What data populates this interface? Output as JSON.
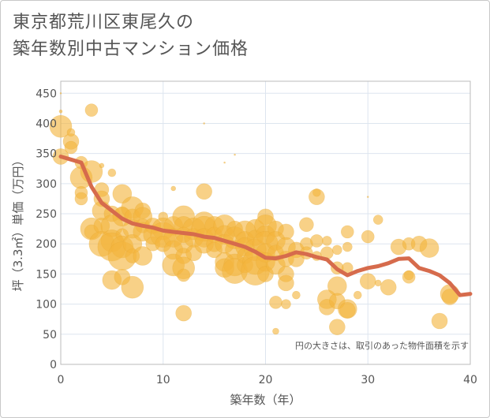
{
  "title_lines": [
    "東京都荒川区東尾久の",
    "築年数別中古マンション価格"
  ],
  "note": "円の大きさは、取引のあった物件面積を示す",
  "colors": {
    "bubble": "#f3b53e",
    "line": "#d66b4c",
    "grid": "#dde5ef",
    "plot_border": "#bbbbbb"
  },
  "chart_data": {
    "type": "scatter",
    "title": "東京都荒川区東尾久の 築年数別中古マンション価格",
    "xlabel": "築年数（年）",
    "ylabel": "坪（3.3㎡）単価（万円）",
    "xlim": [
      0,
      40
    ],
    "ylim": [
      0,
      470
    ],
    "x_ticks": [
      0,
      10,
      20,
      30,
      40
    ],
    "y_ticks": [
      0,
      50,
      100,
      150,
      200,
      250,
      300,
      350,
      400,
      450
    ],
    "grid": true,
    "series": [
      {
        "type": "bubble",
        "points": [
          [
            0,
            395,
            14
          ],
          [
            0,
            345,
            10
          ],
          [
            0,
            420,
            2
          ],
          [
            0,
            450,
            1
          ],
          [
            1,
            370,
            10
          ],
          [
            1,
            360,
            8
          ],
          [
            1,
            385,
            5
          ],
          [
            2,
            335,
            8
          ],
          [
            2,
            310,
            14
          ],
          [
            2,
            285,
            8
          ],
          [
            2,
            275,
            8
          ],
          [
            3,
            422,
            8
          ],
          [
            3,
            320,
            14
          ],
          [
            3,
            225,
            14
          ],
          [
            3,
            220,
            9
          ],
          [
            4,
            330,
            3
          ],
          [
            4,
            290,
            9
          ],
          [
            4,
            275,
            10
          ],
          [
            4,
            255,
            12
          ],
          [
            4,
            230,
            10
          ],
          [
            4,
            200,
            16
          ],
          [
            5,
            318,
            5
          ],
          [
            5,
            250,
            10
          ],
          [
            5,
            230,
            14
          ],
          [
            5,
            205,
            14
          ],
          [
            5,
            195,
            18
          ],
          [
            5,
            140,
            12
          ],
          [
            6,
            283,
            12
          ],
          [
            6,
            250,
            9
          ],
          [
            6,
            245,
            12
          ],
          [
            6,
            215,
            8
          ],
          [
            6,
            195,
            14
          ],
          [
            6,
            180,
            18
          ],
          [
            6,
            145,
            10
          ],
          [
            7,
            260,
            14
          ],
          [
            7,
            245,
            10
          ],
          [
            7,
            225,
            12
          ],
          [
            7,
            200,
            12
          ],
          [
            7,
            180,
            9
          ],
          [
            7,
            128,
            14
          ],
          [
            8,
            255,
            10
          ],
          [
            8,
            245,
            12
          ],
          [
            8,
            230,
            9
          ],
          [
            8,
            220,
            12
          ],
          [
            8,
            180,
            12
          ],
          [
            9,
            230,
            10
          ],
          [
            9,
            215,
            12
          ],
          [
            9,
            200,
            9
          ],
          [
            10,
            245,
            6
          ],
          [
            10,
            225,
            14
          ],
          [
            10,
            215,
            16
          ],
          [
            10,
            200,
            10
          ],
          [
            11,
            292,
            3
          ],
          [
            11,
            230,
            12
          ],
          [
            11,
            210,
            12
          ],
          [
            11,
            190,
            12
          ],
          [
            11,
            165,
            14
          ],
          [
            12,
            245,
            14
          ],
          [
            12,
            230,
            12
          ],
          [
            12,
            215,
            10
          ],
          [
            12,
            200,
            12
          ],
          [
            12,
            180,
            10
          ],
          [
            12,
            160,
            14
          ],
          [
            12,
            148,
            8
          ],
          [
            12,
            85,
            10
          ],
          [
            13,
            225,
            14
          ],
          [
            13,
            210,
            12
          ],
          [
            13,
            185,
            10
          ],
          [
            14,
            400,
            1
          ],
          [
            14,
            287,
            10
          ],
          [
            14,
            235,
            14
          ],
          [
            14,
            225,
            16
          ],
          [
            14,
            210,
            12
          ],
          [
            14,
            200,
            12
          ],
          [
            15,
            230,
            12
          ],
          [
            15,
            215,
            10
          ],
          [
            15,
            200,
            10
          ],
          [
            15,
            190,
            10
          ],
          [
            16,
            335,
            1
          ],
          [
            16,
            230,
            14
          ],
          [
            16,
            215,
            12
          ],
          [
            16,
            200,
            12
          ],
          [
            16,
            170,
            12
          ],
          [
            16,
            160,
            12
          ],
          [
            17,
            348,
            1
          ],
          [
            17,
            225,
            10
          ],
          [
            17,
            210,
            14
          ],
          [
            17,
            190,
            12
          ],
          [
            17,
            165,
            14
          ],
          [
            17,
            155,
            16
          ],
          [
            18,
            220,
            14
          ],
          [
            18,
            205,
            12
          ],
          [
            18,
            195,
            12
          ],
          [
            18,
            180,
            10
          ],
          [
            18,
            165,
            10
          ],
          [
            19,
            225,
            12
          ],
          [
            19,
            210,
            10
          ],
          [
            19,
            190,
            14
          ],
          [
            19,
            170,
            16
          ],
          [
            19,
            155,
            18
          ],
          [
            20,
            245,
            10
          ],
          [
            20,
            230,
            14
          ],
          [
            20,
            215,
            12
          ],
          [
            20,
            200,
            16
          ],
          [
            20,
            185,
            12
          ],
          [
            20,
            170,
            12
          ],
          [
            20,
            150,
            10
          ],
          [
            21,
            225,
            10
          ],
          [
            21,
            205,
            12
          ],
          [
            21,
            185,
            10
          ],
          [
            21,
            165,
            12
          ],
          [
            21,
            103,
            8
          ],
          [
            21,
            55,
            4
          ],
          [
            22,
            220,
            10
          ],
          [
            22,
            195,
            12
          ],
          [
            22,
            175,
            10
          ],
          [
            22,
            150,
            10
          ],
          [
            22,
            135,
            10
          ],
          [
            22,
            100,
            6
          ],
          [
            23,
            190,
            10
          ],
          [
            23,
            175,
            10
          ],
          [
            23,
            115,
            5
          ],
          [
            24,
            232,
            9
          ],
          [
            24,
            200,
            8
          ],
          [
            24,
            185,
            8
          ],
          [
            25,
            285,
            5
          ],
          [
            25,
            278,
            10
          ],
          [
            25,
            205,
            8
          ],
          [
            25,
            180,
            6
          ],
          [
            26,
            205,
            6
          ],
          [
            26,
            185,
            8
          ],
          [
            26,
            108,
            12
          ],
          [
            26,
            95,
            10
          ],
          [
            27,
            160,
            8
          ],
          [
            27,
            130,
            12
          ],
          [
            27,
            105,
            10
          ],
          [
            27,
            62,
            10
          ],
          [
            27,
            190,
            6
          ],
          [
            28,
            220,
            8
          ],
          [
            28,
            195,
            6
          ],
          [
            28,
            160,
            7
          ],
          [
            28,
            92,
            12
          ],
          [
            28,
            90,
            10
          ],
          [
            29,
            115,
            5
          ],
          [
            30,
            278,
            1
          ],
          [
            30,
            212,
            8
          ],
          [
            30,
            138,
            10
          ],
          [
            31,
            240,
            6
          ],
          [
            31,
            135,
            4
          ],
          [
            32,
            128,
            10
          ],
          [
            33,
            195,
            10
          ],
          [
            34,
            200,
            8
          ],
          [
            34,
            148,
            6
          ],
          [
            34,
            145,
            8
          ],
          [
            35,
            200,
            10
          ],
          [
            36,
            193,
            12
          ],
          [
            37,
            72,
            10
          ],
          [
            38,
            117,
            12
          ],
          [
            38,
            112,
            10
          ]
        ]
      },
      {
        "type": "line",
        "x": [
          0,
          1,
          2,
          3,
          4,
          5,
          6,
          7,
          8,
          9,
          10,
          11,
          12,
          13,
          14,
          15,
          16,
          17,
          18,
          19,
          20,
          21,
          22,
          23,
          24,
          25,
          26,
          27,
          28,
          29,
          30,
          31,
          32,
          33,
          34,
          35,
          36,
          37,
          38,
          39,
          40
        ],
        "y": [
          345,
          340,
          335,
          295,
          268,
          255,
          242,
          234,
          230,
          227,
          222,
          220,
          218,
          216,
          212,
          210,
          205,
          200,
          195,
          187,
          177,
          176,
          180,
          186,
          183,
          178,
          174,
          158,
          148,
          155,
          160,
          163,
          168,
          175,
          176,
          160,
          155,
          148,
          135,
          115,
          117
        ]
      }
    ]
  }
}
